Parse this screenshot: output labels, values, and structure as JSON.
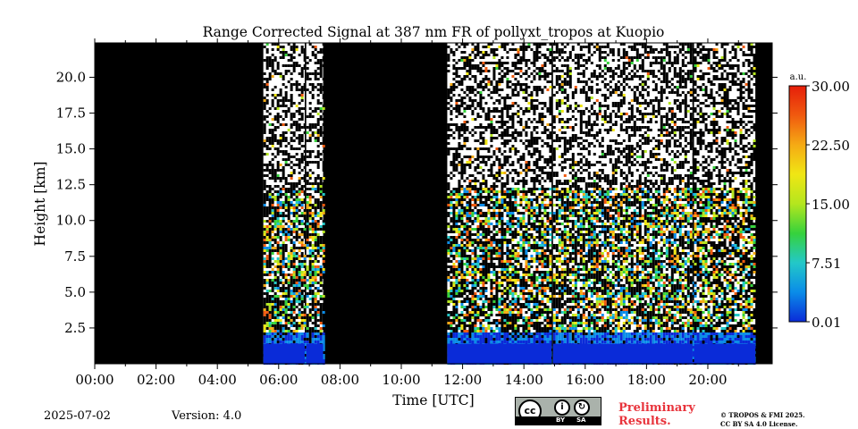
{
  "chart_data": {
    "type": "heatmap",
    "title": "Range Corrected Signal at 387 nm FR of pollyxt_tropos at Kuopio",
    "xlabel": "Time [UTC]",
    "ylabel": "Height [km]",
    "x_ticks": [
      "00:00",
      "02:00",
      "04:00",
      "06:00",
      "08:00",
      "10:00",
      "12:00",
      "14:00",
      "16:00",
      "18:00",
      "20:00"
    ],
    "x_range_hours": [
      0,
      22.1
    ],
    "y_ticks": [
      "2.5",
      "5.0",
      "7.5",
      "10.0",
      "12.5",
      "15.0",
      "17.5",
      "20.0"
    ],
    "y_range_km": [
      0,
      22.4
    ],
    "colorbar": {
      "unit": "a.u.",
      "ticks": [
        "30.00",
        "22.50",
        "15.00",
        "7.51",
        "0.01"
      ],
      "range": [
        0.01,
        30.0
      ],
      "colormap": [
        "#0a2bd8",
        "#0a8ce8",
        "#23c8c8",
        "#36d23c",
        "#b4e61e",
        "#f0e614",
        "#f5aa14",
        "#f05a0f",
        "#e61e0a"
      ]
    },
    "no_data_color": "#000000",
    "measurement_periods_utc_hours": [
      [
        5.5,
        6.85
      ],
      [
        6.9,
        7.45
      ],
      [
        11.5,
        14.9
      ],
      [
        14.95,
        19.5
      ],
      [
        19.55,
        21.55
      ]
    ]
  },
  "footer": {
    "date": "2025-07-02",
    "version": "Version: 4.0",
    "preliminary_line1": "Preliminary",
    "preliminary_line2": "Results.",
    "license_line1": "© TROPOS & FMI 2025.",
    "license_line2": "CC BY SA 4.0 License.",
    "cc_by": "BY",
    "cc_sa": "SA",
    "cc_label": "cc"
  }
}
